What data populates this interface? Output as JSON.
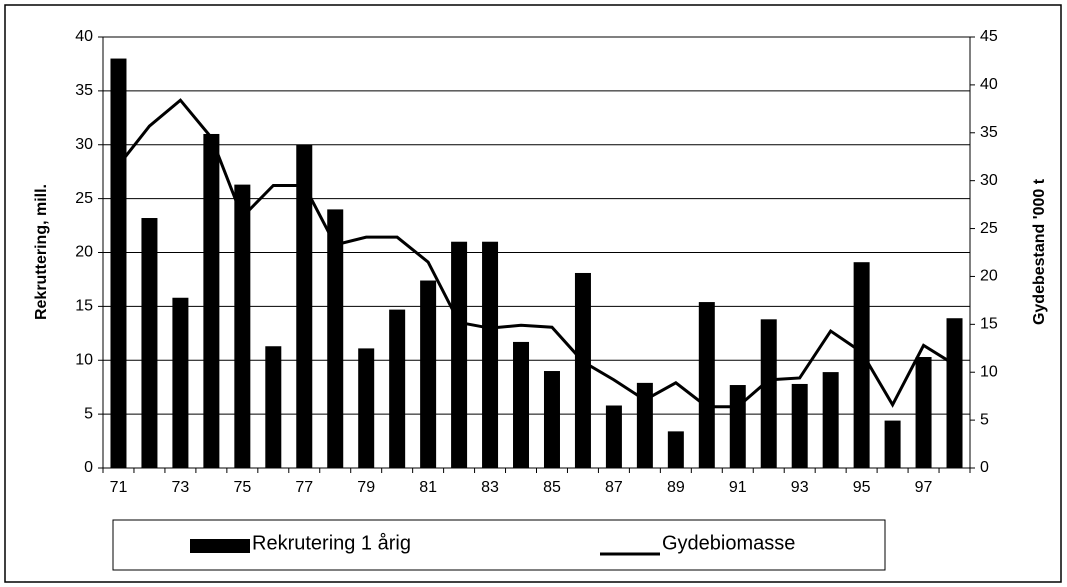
{
  "chart_data": {
    "type": "bar_line",
    "categories": [
      "71",
      null,
      "73",
      null,
      "75",
      null,
      "77",
      null,
      "79",
      null,
      "81",
      null,
      "83",
      null,
      "85",
      null,
      "87",
      null,
      "89",
      null,
      "91",
      null,
      "93",
      null,
      "95",
      null,
      "97",
      null
    ],
    "y_label": "Rekruttering,  mill.",
    "y2_label": "Gydebestand '000 t",
    "series": [
      {
        "name": "Rekrutering 1 årig",
        "color": "#000000",
        "kind": "bar",
        "values": [
          38,
          23.2,
          15.8,
          31,
          26.3,
          11.3,
          30,
          24,
          11.1,
          14.7,
          17.4,
          21,
          21,
          11.7,
          9,
          18.1,
          5.8,
          7.9,
          3.4,
          15.4,
          7.7,
          13.8,
          7.8,
          8.9,
          19.1,
          4.4,
          10.3,
          13.9
        ]
      },
      {
        "name": "Gydebiomasse",
        "color": "#000000",
        "kind": "line",
        "axis": "y2",
        "values": [
          31.6,
          35.7,
          38.4,
          34.5,
          26.2,
          29.5,
          29.5,
          23.3,
          24.1,
          24.1,
          21.5,
          15.2,
          14.6,
          14.9,
          14.7,
          11.1,
          9.2,
          7.1,
          8.9,
          6.4,
          6.4,
          9.2,
          9.4,
          14.3,
          12.1,
          6.6,
          12.8,
          10.8
        ]
      }
    ],
    "ylim": [
      0,
      40
    ],
    "yticks": [
      0,
      5,
      10,
      15,
      20,
      25,
      30,
      35,
      40
    ],
    "y2lim": [
      0,
      45
    ],
    "y2ticks": [
      0,
      5,
      10,
      15,
      20,
      25,
      30,
      35,
      40,
      45
    ],
    "grid": true
  }
}
